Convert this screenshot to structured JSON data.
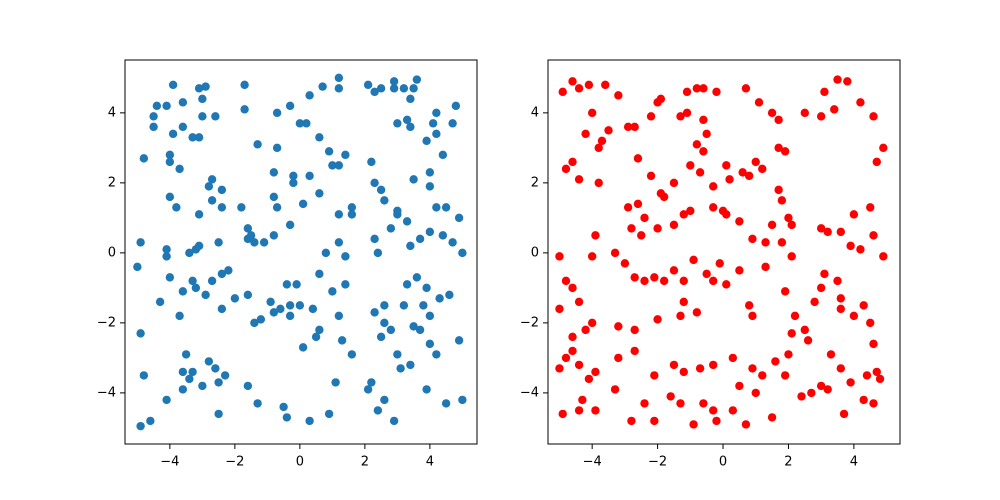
{
  "chart_data": [
    {
      "type": "scatter",
      "color": "#1f77b4",
      "xlim": [
        -5.38,
        5.45
      ],
      "ylim": [
        -5.46,
        5.51
      ],
      "xticks": [
        {
          "value": -4,
          "label": "−4"
        },
        {
          "value": -2,
          "label": "−2"
        },
        0,
        2,
        4
      ],
      "yticks": [
        {
          "value": -4,
          "label": "−4"
        },
        {
          "value": -2,
          "label": "−2"
        },
        0,
        2,
        4
      ],
      "x": [
        -3.9,
        -4.1,
        -4.4,
        -4.5,
        -4.5,
        -3.6,
        -3.9,
        -3.6,
        -3.3,
        -3.1,
        -3.1,
        -2.9,
        -3.0,
        -3.0,
        -2.6,
        -1.7,
        -1.7,
        -4.8,
        -4.0,
        -4.0,
        -3.7,
        -4.0,
        -3.8,
        -3.1,
        -2.7,
        -2.8,
        -2.7,
        -2.4,
        -2.4,
        -1.8,
        -1.3,
        -0.7,
        -0.8,
        -0.7,
        -0.8,
        -0.7,
        -0.3,
        0.0,
        0.2,
        0.3,
        0.7,
        1.2,
        1.2,
        0.6,
        0.9,
        1.0,
        1.2,
        1.4,
        -0.2,
        -0.2,
        0.3,
        0.6,
        0.1,
        1.2,
        1.6,
        1.6,
        -1.6,
        -1.6,
        -1.5,
        -1.4,
        -1.1,
        -0.8,
        -0.3,
        0.8,
        1.2,
        1.4,
        -4.9,
        -5.0,
        -4.1,
        -4.1,
        -3.4,
        -3.2,
        -3.1,
        -2.5,
        -2.4,
        -2.2,
        -2.7,
        -3.3,
        -3.2,
        -2.9,
        -3.6,
        -4.0,
        -4.3,
        -3.7,
        -2.4,
        -2.0,
        -1.6,
        -0.9,
        -0.8,
        -1.2,
        -1.4,
        -0.6,
        -0.4,
        -0.3,
        -0.1,
        0.0,
        -0.3,
        0.4,
        0.6,
        1.0,
        1.4,
        1.2,
        1.3,
        1.6,
        0.6,
        0.5,
        0.1,
        -4.9,
        -4.8,
        -4.6,
        -4.9,
        -4.1,
        -3.6,
        -3.5,
        -3.4,
        -3.6,
        -3.3,
        -3.0,
        -2.8,
        -2.6,
        -2.5,
        -2.3,
        -2.5,
        -1.6,
        -1.3,
        -0.5,
        -0.4,
        0.3,
        0.9,
        1.1,
        2.1,
        2.2,
        2.4,
        2.6,
        2.9,
        3.1,
        3.4,
        3.0,
        2.8,
        2.5,
        2.6,
        2.6,
        2.3,
        3.2,
        3.3,
        3.6,
        3.9,
        3.8,
        4.0,
        4.3,
        4.6,
        4.0,
        3.7,
        3.5,
        4.2,
        4.9,
        4.5,
        3.9,
        5.0,
        2.4,
        2.3,
        2.8,
        3.0,
        3.3,
        3.7,
        3.4,
        4.0,
        4.2,
        4.0,
        4.4,
        4.7,
        5.0,
        4.9,
        4.5,
        2.2,
        2.3,
        2.5,
        2.6,
        3.0,
        3.5,
        4.0,
        4.4,
        4.2,
        3.9,
        3.4,
        3.3,
        3.0,
        2.9,
        2.9,
        2.5,
        2.3,
        2.1,
        3.2,
        3.5,
        3.4,
        3.6,
        4.2,
        4.8,
        4.7,
        4.1
      ],
      "values": [
        4.8,
        4.2,
        4.2,
        3.9,
        3.6,
        4.3,
        3.4,
        3.6,
        3.3,
        3.3,
        4.7,
        4.75,
        4.4,
        3.9,
        3.9,
        4.8,
        4.1,
        2.7,
        2.8,
        2.6,
        2.4,
        1.6,
        1.3,
        1.1,
        2.1,
        1.9,
        1.5,
        1.8,
        1.3,
        1.3,
        3.1,
        3.0,
        2.3,
        1.3,
        1.6,
        4.0,
        4.2,
        3.7,
        3.7,
        4.5,
        4.75,
        5.0,
        4.7,
        3.3,
        2.9,
        2.5,
        2.5,
        2.8,
        2.2,
        2.0,
        2.2,
        1.7,
        1.4,
        1.1,
        1.3,
        1.1,
        0.7,
        0.4,
        0.5,
        0.3,
        0.3,
        0.5,
        0.8,
        0.0,
        0.3,
        -0.1,
        0.3,
        -0.4,
        -0.1,
        0.1,
        0.0,
        0.1,
        0.2,
        0.3,
        -0.6,
        -0.5,
        -0.8,
        -0.8,
        -1.0,
        -1.2,
        -1.1,
        -0.7,
        -1.4,
        -1.8,
        -1.6,
        -1.3,
        -1.2,
        -1.4,
        -1.7,
        -1.9,
        -2.0,
        -1.6,
        -0.9,
        -1.5,
        -0.9,
        -1.5,
        -1.8,
        -1.6,
        -0.6,
        -1.1,
        -0.9,
        -1.8,
        -2.5,
        -2.9,
        -2.2,
        -2.4,
        -2.7,
        -2.3,
        -3.5,
        -4.8,
        -4.95,
        -4.2,
        -3.4,
        -2.9,
        -3.6,
        -3.9,
        -3.4,
        -3.8,
        -3.1,
        -3.3,
        -3.7,
        -3.5,
        -4.6,
        -3.8,
        -4.3,
        -4.4,
        -4.7,
        -4.8,
        -4.6,
        -3.7,
        -3.9,
        -3.7,
        -4.5,
        -4.2,
        -4.8,
        -3.3,
        -3.2,
        -2.9,
        -2.2,
        -2.4,
        -2.0,
        -1.5,
        -1.7,
        -1.5,
        -0.9,
        -0.7,
        -1.0,
        -1.5,
        -1.8,
        -1.3,
        -1.2,
        -2.6,
        -2.2,
        -2.1,
        -2.9,
        -2.5,
        -4.3,
        -3.9,
        -4.2,
        0.0,
        0.4,
        0.7,
        1.1,
        0.9,
        0.4,
        0.2,
        0.6,
        1.3,
        1.9,
        0.5,
        0.3,
        0.0,
        1.0,
        1.3,
        2.6,
        2.0,
        1.8,
        1.5,
        1.2,
        2.1,
        2.3,
        2.8,
        3.4,
        3.2,
        3.6,
        3.8,
        3.7,
        4.9,
        4.7,
        4.7,
        4.6,
        4.8,
        4.7,
        4.7,
        4.4,
        4.95,
        4.0,
        4.2,
        3.7,
        3.7
      ]
    },
    {
      "type": "scatter",
      "color": "#ff0000",
      "xlim": [
        -5.35,
        5.41
      ],
      "ylim": [
        -5.46,
        5.51
      ],
      "xticks": [
        {
          "value": -4,
          "label": "−4"
        },
        {
          "value": -2,
          "label": "−2"
        },
        0,
        2,
        4
      ],
      "yticks": [
        {
          "value": -4,
          "label": "−4"
        },
        {
          "value": -2,
          "label": "−2"
        },
        0,
        2,
        4
      ],
      "x": [
        -4.6,
        -4.9,
        -4.1,
        -4.4,
        -3.6,
        -3.2,
        -4.0,
        -3.7,
        -3.8,
        -4.2,
        -4.6,
        -4.8,
        -4.4,
        -3.8,
        -3.5,
        -2.9,
        -2.7,
        -2.2,
        -2.0,
        -1.9,
        -1.1,
        -0.8,
        -0.6,
        -0.2,
        0.7,
        -1.3,
        -1.1,
        -0.6,
        -0.5,
        -0.8,
        -0.6,
        -2.6,
        -2.2,
        -1.9,
        -1.8,
        -1.5,
        -1.0,
        -0.7,
        -0.3,
        0.1,
        0.2,
        0.6,
        0.8,
        1.0,
        1.2,
        1.7,
        1.9,
        1.1,
        1.5,
        1.7,
        2.5,
        3.1,
        3.0,
        3.4,
        3.8,
        3.5,
        4.2,
        4.6,
        4.9,
        4.7,
        -2.9,
        -2.6,
        -2.4,
        -2.8,
        -2.5,
        -2.0,
        -1.5,
        -1.2,
        -1.0,
        -0.3,
        0.0,
        0.5,
        0.1,
        0.9,
        1.3,
        1.5,
        1.7,
        1.8,
        2.0,
        2.1,
        1.8,
        2.1,
        3.0,
        3.2,
        3.6,
        4.0,
        3.9,
        4.2,
        4.6,
        4.9,
        4.5,
        -5.0,
        -4.8,
        -4.6,
        -4.4,
        -4.0,
        -3.9,
        -3.3,
        -3.0,
        -2.7,
        -2.4,
        -2.1,
        -1.8,
        -1.5,
        -1.2,
        -0.9,
        -0.5,
        -0.3,
        -0.1,
        0.1,
        0.5,
        0.8,
        0.9,
        1.3,
        1.9,
        2.2,
        2.8,
        3.1,
        3.5,
        3.6,
        3.0,
        3.6,
        4.0,
        4.3,
        4.5,
        4.6,
        3.3,
        2.5,
        2.6,
        2.1,
        2.0,
        -5.0,
        -4.6,
        -4.2,
        -4.0,
        -3.2,
        -2.7,
        -2.0,
        -1.3,
        -1.2,
        -0.8,
        -5.0,
        -4.8,
        -4.6,
        -4.4,
        -4.1,
        -3.9,
        -3.2,
        -2.7,
        -2.1,
        -1.5,
        -1.2,
        -0.7,
        -0.3,
        0.3,
        0.5,
        0.9,
        1.2,
        1.6,
        1.9,
        2.7,
        3.0,
        3.2,
        3.6,
        3.9,
        4.4,
        4.7,
        4.8,
        4.6,
        4.3,
        3.7,
        2.4,
        1.5,
        1.0,
        0.7,
        0.3,
        -0.2,
        -0.3,
        -0.6,
        -0.9,
        -1.3,
        -1.6,
        -2.1,
        -2.4,
        -2.8,
        -3.3,
        -3.9,
        -4.3,
        -4.9,
        -4.4
      ],
      "values": [
        4.9,
        4.6,
        4.8,
        4.7,
        4.8,
        4.5,
        4.0,
        3.2,
        3.0,
        3.4,
        2.6,
        2.4,
        2.1,
        2.0,
        3.5,
        3.6,
        3.6,
        3.9,
        4.3,
        4.4,
        4.6,
        4.7,
        4.7,
        4.6,
        4.7,
        3.9,
        4.0,
        3.8,
        3.4,
        3.1,
        2.9,
        2.7,
        2.2,
        1.7,
        1.6,
        2.0,
        2.5,
        2.3,
        1.9,
        2.5,
        2.1,
        2.3,
        2.2,
        2.6,
        2.4,
        3.0,
        2.9,
        4.3,
        4.0,
        3.8,
        4.0,
        4.6,
        3.9,
        4.1,
        4.9,
        4.95,
        4.3,
        3.9,
        3.0,
        2.6,
        1.3,
        1.4,
        1.0,
        0.7,
        0.5,
        0.7,
        0.8,
        1.1,
        1.2,
        1.3,
        1.2,
        0.9,
        1.1,
        0.4,
        0.3,
        0.8,
        1.8,
        1.5,
        1.0,
        0.8,
        0.3,
        -0.1,
        0.7,
        0.6,
        0.6,
        1.1,
        0.2,
        0.1,
        0.5,
        -0.1,
        1.3,
        -0.1,
        -0.8,
        -1.0,
        -1.4,
        -0.1,
        0.5,
        0.0,
        -0.3,
        -0.7,
        -0.8,
        -0.7,
        -0.8,
        -0.5,
        -0.8,
        -0.2,
        -0.6,
        -0.8,
        -0.3,
        -0.9,
        -0.5,
        -1.5,
        -1.8,
        -0.4,
        -1.1,
        -1.8,
        -1.4,
        -0.6,
        -0.8,
        -1.3,
        -1.0,
        -1.6,
        -1.8,
        -1.5,
        -2.0,
        -2.6,
        -2.9,
        -2.2,
        -2.5,
        -2.3,
        -2.9,
        -1.6,
        -2.4,
        -2.2,
        -2.0,
        -2.1,
        -2.2,
        -1.9,
        -1.8,
        -1.4,
        -1.7,
        -3.3,
        -3.0,
        -2.8,
        -3.2,
        -3.6,
        -3.4,
        -3.0,
        -2.8,
        -3.5,
        -3.2,
        -3.4,
        -3.3,
        -3.2,
        -3.0,
        -3.8,
        -3.3,
        -3.5,
        -3.1,
        -3.5,
        -4.0,
        -3.8,
        -3.9,
        -3.3,
        -3.7,
        -3.5,
        -3.4,
        -3.6,
        -4.3,
        -4.2,
        -4.6,
        -4.1,
        -4.7,
        -4.0,
        -4.9,
        -4.5,
        -4.8,
        -4.5,
        -4.3,
        -4.9,
        -4.3,
        -4.1,
        -4.8,
        -4.3,
        -4.8,
        -3.9,
        -4.5,
        -4.2,
        -4.6,
        -4.5
      ]
    }
  ]
}
